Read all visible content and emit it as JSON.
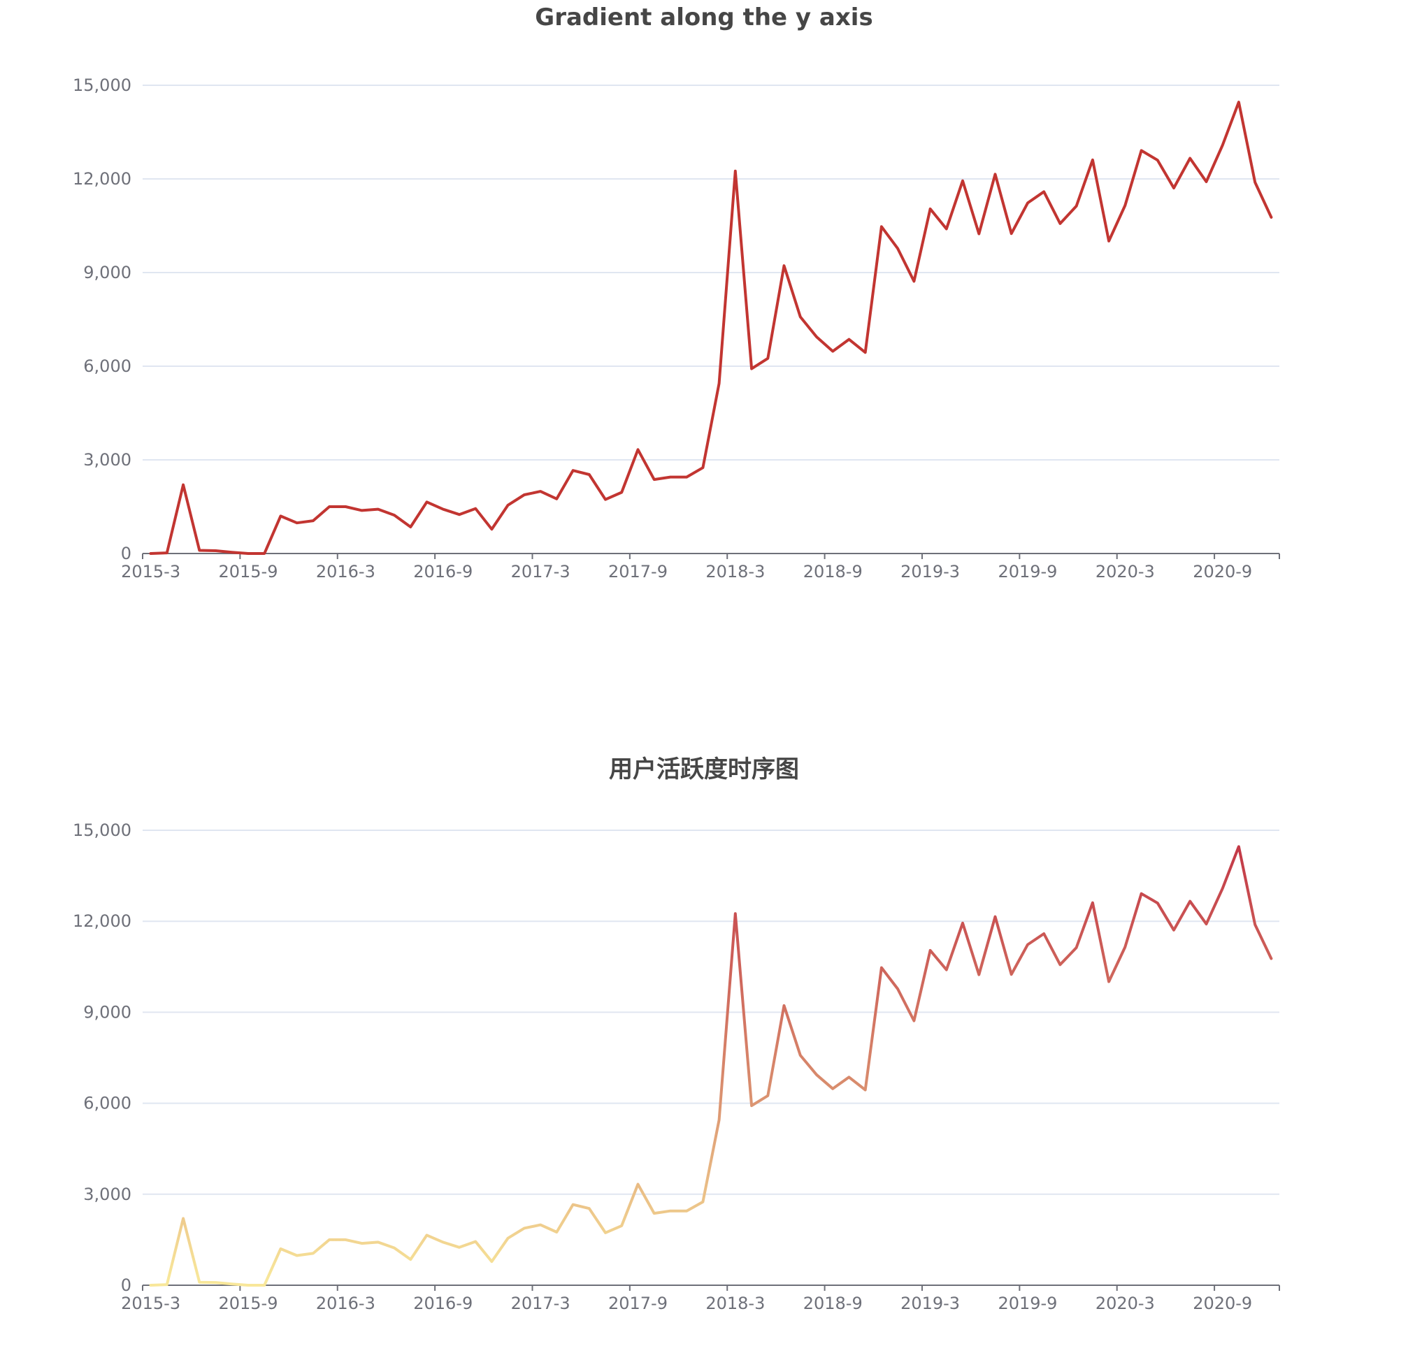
{
  "colors": {
    "line_solid": "#c23531",
    "gradient_low": "#f8e79a",
    "gradient_mid": "#d88a6c",
    "gradient_high": "#c23545",
    "grid": "#e0e6f1",
    "axis": "#6e7079",
    "title": "#464646"
  },
  "chart_data": [
    {
      "type": "line",
      "title": "Gradient along the y axis",
      "xlabel": "",
      "ylabel": "",
      "color_mode": "solid",
      "ylim": [
        0,
        15000
      ],
      "y_ticks": [
        0,
        3000,
        6000,
        9000,
        12000,
        15000
      ],
      "y_tick_labels": [
        "0",
        "3,000",
        "6,000",
        "9,000",
        "12,000",
        "15,000"
      ],
      "x_tick_labels": [
        "2015-3",
        "2015-9",
        "2016-3",
        "2016-9",
        "2017-3",
        "2017-9",
        "2018-3",
        "2018-9",
        "2019-3",
        "2019-9",
        "2020-3",
        "2020-9"
      ],
      "x_tick_positions": [
        0,
        6,
        12,
        18,
        24,
        30,
        36,
        42,
        48,
        54,
        60,
        66
      ],
      "grid": true,
      "legend": "none",
      "x": [
        "2015-3",
        "2015-4",
        "2015-5",
        "2015-6",
        "2015-7",
        "2015-8",
        "2015-9",
        "2015-10",
        "2015-11",
        "2015-12",
        "2016-1",
        "2016-2",
        "2016-3",
        "2016-4",
        "2016-5",
        "2016-6",
        "2016-7",
        "2016-8",
        "2016-9",
        "2016-10",
        "2016-11",
        "2016-12",
        "2017-1",
        "2017-2",
        "2017-3",
        "2017-4",
        "2017-5",
        "2017-6",
        "2017-7",
        "2017-8",
        "2017-9",
        "2017-10",
        "2017-11",
        "2017-12",
        "2018-1",
        "2018-2",
        "2018-3",
        "2018-4",
        "2018-5",
        "2018-6",
        "2018-7",
        "2018-8",
        "2018-9",
        "2018-10",
        "2018-11",
        "2018-12",
        "2019-1",
        "2019-2",
        "2019-3",
        "2019-4",
        "2019-5",
        "2019-6",
        "2019-7",
        "2019-8",
        "2019-9",
        "2019-10",
        "2019-11",
        "2019-12",
        "2020-1",
        "2020-2",
        "2020-3",
        "2020-4",
        "2020-5",
        "2020-6",
        "2020-7",
        "2020-8",
        "2020-9",
        "2020-10",
        "2020-11",
        "2020-12"
      ],
      "values": [
        0,
        20,
        2200,
        100,
        90,
        40,
        0,
        0,
        1200,
        980,
        1050,
        1500,
        1500,
        1380,
        1420,
        1230,
        850,
        1650,
        1420,
        1250,
        1440,
        780,
        1550,
        1880,
        1990,
        1750,
        2660,
        2530,
        1730,
        1960,
        3330,
        2370,
        2450,
        2450,
        2750,
        5450,
        12250,
        5920,
        6250,
        9220,
        7580,
        6940,
        6480,
        6860,
        6440,
        10470,
        9770,
        8720,
        11040,
        10400,
        11940,
        10240,
        12150,
        10250,
        11230,
        11590,
        10570,
        11130,
        12610,
        10010,
        11150,
        12910,
        12600,
        11710,
        12660,
        11910,
        13080,
        14460,
        11890,
        10770
      ]
    },
    {
      "type": "line",
      "title": "用户活跃度时序图",
      "xlabel": "",
      "ylabel": "",
      "color_mode": "gradient-y",
      "ylim": [
        0,
        15000
      ],
      "y_ticks": [
        0,
        3000,
        6000,
        9000,
        12000,
        15000
      ],
      "y_tick_labels": [
        "0",
        "3,000",
        "6,000",
        "9,000",
        "12,000",
        "15,000"
      ],
      "x_tick_labels": [
        "2015-3",
        "2015-9",
        "2016-3",
        "2016-9",
        "2017-3",
        "2017-9",
        "2018-3",
        "2018-9",
        "2019-3",
        "2019-9",
        "2020-3",
        "2020-9"
      ],
      "x_tick_positions": [
        0,
        6,
        12,
        18,
        24,
        30,
        36,
        42,
        48,
        54,
        60,
        66
      ],
      "grid": true,
      "legend": "none",
      "x": [
        "2015-3",
        "2015-4",
        "2015-5",
        "2015-6",
        "2015-7",
        "2015-8",
        "2015-9",
        "2015-10",
        "2015-11",
        "2015-12",
        "2016-1",
        "2016-2",
        "2016-3",
        "2016-4",
        "2016-5",
        "2016-6",
        "2016-7",
        "2016-8",
        "2016-9",
        "2016-10",
        "2016-11",
        "2016-12",
        "2017-1",
        "2017-2",
        "2017-3",
        "2017-4",
        "2017-5",
        "2017-6",
        "2017-7",
        "2017-8",
        "2017-9",
        "2017-10",
        "2017-11",
        "2017-12",
        "2018-1",
        "2018-2",
        "2018-3",
        "2018-4",
        "2018-5",
        "2018-6",
        "2018-7",
        "2018-8",
        "2018-9",
        "2018-10",
        "2018-11",
        "2018-12",
        "2019-1",
        "2019-2",
        "2019-3",
        "2019-4",
        "2019-5",
        "2019-6",
        "2019-7",
        "2019-8",
        "2019-9",
        "2019-10",
        "2019-11",
        "2019-12",
        "2020-1",
        "2020-2",
        "2020-3",
        "2020-4",
        "2020-5",
        "2020-6",
        "2020-7",
        "2020-8",
        "2020-9",
        "2020-10",
        "2020-11",
        "2020-12"
      ],
      "values": [
        0,
        20,
        2200,
        100,
        90,
        40,
        0,
        0,
        1200,
        980,
        1050,
        1500,
        1500,
        1380,
        1420,
        1230,
        850,
        1650,
        1420,
        1250,
        1440,
        780,
        1550,
        1880,
        1990,
        1750,
        2660,
        2530,
        1730,
        1960,
        3330,
        2370,
        2450,
        2450,
        2750,
        5450,
        12250,
        5920,
        6250,
        9220,
        7580,
        6940,
        6480,
        6860,
        6440,
        10470,
        9770,
        8720,
        11040,
        10400,
        11940,
        10240,
        12150,
        10250,
        11230,
        11590,
        10570,
        11130,
        12610,
        10010,
        11150,
        12910,
        12600,
        11710,
        12660,
        11910,
        13080,
        14460,
        11890,
        10770
      ]
    }
  ]
}
